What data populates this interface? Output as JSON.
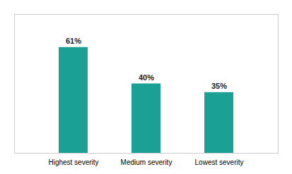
{
  "chart_data": {
    "type": "bar",
    "categories": [
      "Highest severity",
      "Medium severity",
      "Lowest severity"
    ],
    "values": [
      61,
      40,
      35
    ],
    "value_labels": [
      "61%",
      "40%",
      "35%"
    ],
    "data_labels": true,
    "color": "#1aa094",
    "ylim": [
      0,
      80
    ],
    "grid": false,
    "tick_labels": "x"
  }
}
